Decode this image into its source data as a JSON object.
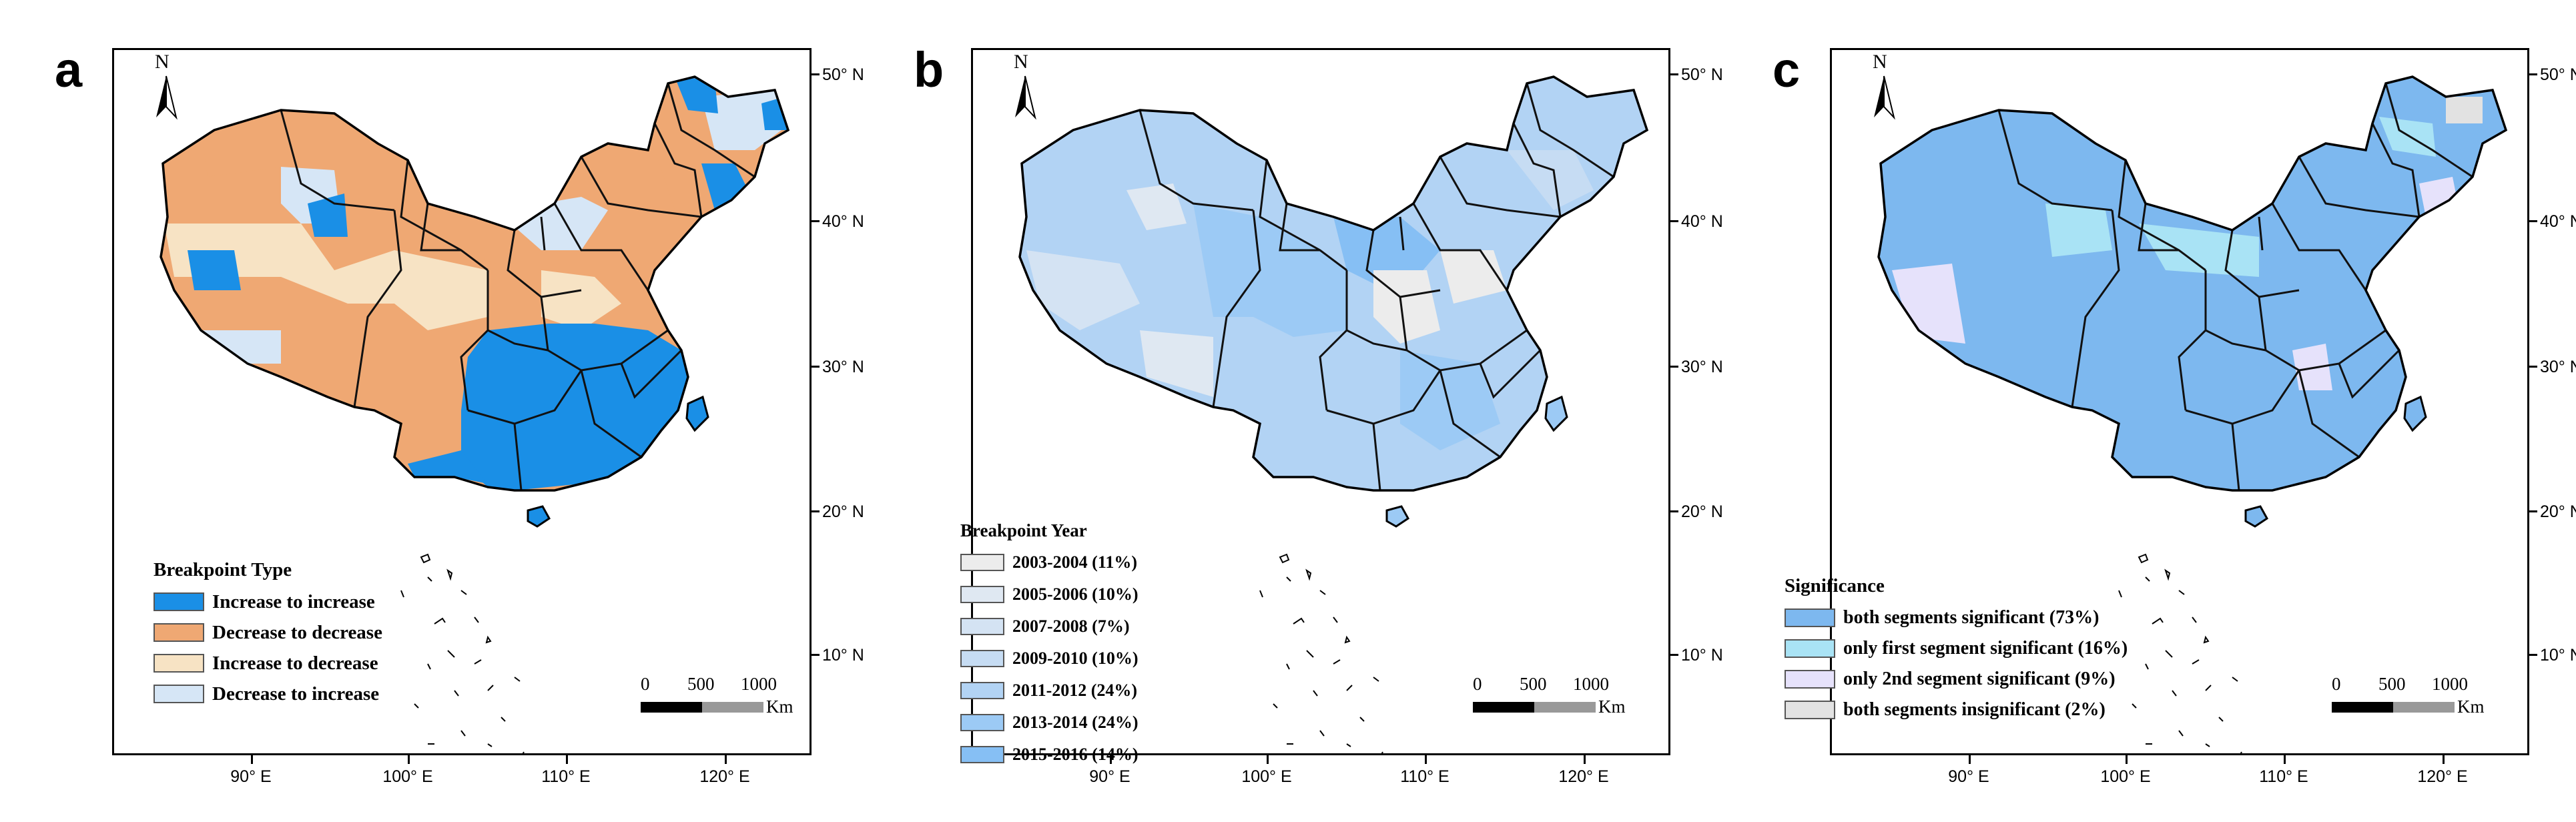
{
  "axes": {
    "lat_labels": [
      "50° N",
      "40° N",
      "30° N",
      "20° N",
      "10° N"
    ],
    "lon_labels": [
      "90° E",
      "100° E",
      "110° E",
      "120° E"
    ]
  },
  "north_label": "N",
  "scalebar": {
    "ticks": [
      "0",
      "500",
      "1000"
    ],
    "unit": "Km"
  },
  "panels": [
    {
      "letter": "a",
      "legend_title": "Breakpoint Type",
      "legend": [
        {
          "label": "Increase to increase",
          "color": "#1a8fe6"
        },
        {
          "label": "Decrease to decrease",
          "color": "#efa873"
        },
        {
          "label": "Increase to decrease",
          "color": "#f7e3c4"
        },
        {
          "label": "Decrease to increase",
          "color": "#d6e6f6"
        }
      ]
    },
    {
      "letter": "b",
      "legend_title": "Breakpoint Year",
      "legend": [
        {
          "label": "2003-2004 (11%)",
          "color": "#ececec"
        },
        {
          "label": "2005-2006 (10%)",
          "color": "#dfe8f2"
        },
        {
          "label": "2007-2008 (7%)",
          "color": "#d4e3f3"
        },
        {
          "label": "2009-2010 (10%)",
          "color": "#c6dcf3"
        },
        {
          "label": "2011-2012 (24%)",
          "color": "#b2d3f4"
        },
        {
          "label": "2013-2014 (24%)",
          "color": "#9ccaf5"
        },
        {
          "label": "2015-2016 (14%)",
          "color": "#86bff4"
        }
      ]
    },
    {
      "letter": "c",
      "legend_title": "Significance",
      "legend": [
        {
          "label": "both segments significant (73%)",
          "color": "#7db8ef"
        },
        {
          "label": "only first segment significant (16%)",
          "color": "#a9e3f5"
        },
        {
          "label": "only 2nd segment significant (9%)",
          "color": "#e6e2fb"
        },
        {
          "label": "both segments insignificant (2%)",
          "color": "#e2e2e2"
        }
      ]
    }
  ]
}
